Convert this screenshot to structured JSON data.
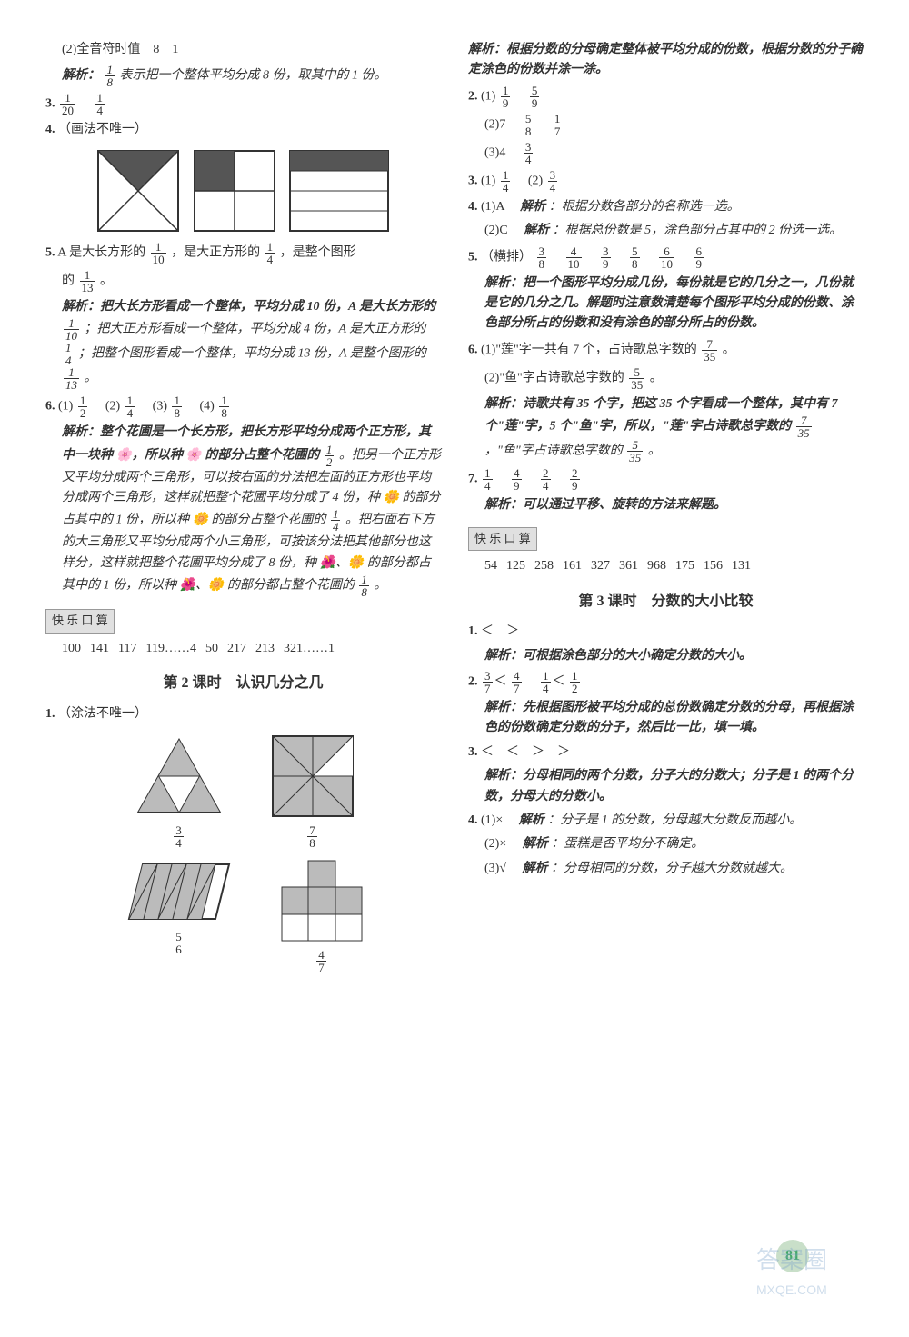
{
  "left": {
    "p1": {
      "text": "(2)全音符时值　8　1"
    },
    "p2a": "解析：",
    "p2b": "表示把一个整体平均分成 8 份，取其中的 1 份。",
    "p3_num": "3.",
    "p4_num": "4.",
    "p4_text": "（画法不唯一）",
    "q4_shapes": {
      "stroke": "#333",
      "fill": "#666",
      "size": 90
    },
    "p5_num": "5.",
    "p5_a": "A 是大长方形的",
    "p5_b": "，是大正方形的",
    "p5_c": "，是整个图形",
    "p5_d": "的",
    "p5_e": "。",
    "p5_ex_a": "解析：把大长方形看成一个整体，平均分成 10 份，A 是大长方形的",
    "p5_ex_b": "；把大正方形看成一个整体，平均分成 4 份，A 是大正方形的",
    "p5_ex_c": "；把整个图形看成一个整体，平均分成 13 份，A 是整个图形的",
    "p5_ex_d": "。",
    "p6_num": "6.",
    "p6_a": "(1)",
    "p6_b": "(2)",
    "p6_c": "(3)",
    "p6_d": "(4)",
    "p6_ex1a": "解析：整个花圃是一个长方形，把长方形平均分成两个正方形，其中一块种 🌸，所以种 🌸 的部分占整个花圃的",
    "p6_ex1b": "。把另一个正方形又平均分成两个三角形，可以按右面的分法把左面的正方形也平均分成两个三角形，这样就把整个花圃平均分成了 4 份，种 🌼 的部分占其中的 1 份，所以种 🌼 的部分占整个花圃的",
    "p6_ex1c": "。把右面右下方的大三角形又平均分成两个小三角形，可按该分法把其他部分也这样分，这样就把整个花圃平均分成了 8 份，种 🌺、🌼 的部分都占其中的 1 份，所以种 🌺、🌼 的部分都占整个花圃的",
    "p6_ex1d": "。",
    "klks_label": "快 乐 口 算",
    "klks_items": [
      "100",
      "141",
      "117",
      "119……4",
      "50",
      "217",
      "213",
      "321……1"
    ],
    "lesson2_title": "第 2 课时　认识几分之几",
    "l2_p1_num": "1.",
    "l2_p1_text": "（涂法不唯一）",
    "l2_labels": {
      "a": "3/4 → display",
      "b": "7/8",
      "c": "5/6",
      "d": "4/7"
    },
    "colors": {
      "shape_stroke": "#333",
      "shape_fill_dark": "#555",
      "shape_fill_light": "#ccc"
    }
  },
  "right": {
    "p1_a": "解析：根据分数的分母确定整体被平均分成的份数，根据分数的分子确定涂色的份数并涂一涂。",
    "p2_num": "2.",
    "p2_1": "(1)",
    "p2_2": "(2)7",
    "p2_3": "(3)4",
    "p3_num": "3.",
    "p3_1": "(1)",
    "p3_2": "(2)",
    "p4_num": "4.",
    "p4_1a": "(1)A　",
    "p4_1b": "解析",
    "p4_1c": "：根据分数各部分的名称选一选。",
    "p4_2a": "(2)C　",
    "p4_2b": "解析",
    "p4_2c": "：根据总份数是 5，涂色部分占其中的 2 份选一选。",
    "p5_num": "5.",
    "p5_lead": "（横排）",
    "p5_ex": "解析：把一个图形平均分成几份，每份就是它的几分之一，几份就是它的几分之几。解题时注意数清楚每个图形平均分成的份数、涂色部分所占的份数和没有涂色的部分所占的份数。",
    "p6_num": "6.",
    "p6_1a": "(1)\"莲\"字一共有 7 个，占诗歌总字数的",
    "p6_1b": "。",
    "p6_2a": "(2)\"鱼\"字占诗歌总字数的",
    "p6_2b": "。",
    "p6_ex_a": "解析：诗歌共有 35 个字，把这 35 个字看成一个整体，其中有 7 个\"莲\"字，5 个\"鱼\"字，所以，\"莲\"字占诗歌总字数的",
    "p6_ex_b": "，\"鱼\"字占诗歌总字数的",
    "p6_ex_c": "。",
    "p7_num": "7.",
    "p7_ex": "解析：可以通过平移、旋转的方法来解题。",
    "klks_label": "快 乐 口 算",
    "klks_items": [
      "54",
      "125",
      "258",
      "161",
      "327",
      "361",
      "968",
      "175",
      "156",
      "131"
    ],
    "lesson3_title": "第 3 课时　分数的大小比较",
    "l3_p1_num": "1.",
    "l3_p1_text": "＜　＞",
    "l3_p1_ex": "解析：可根据涂色部分的大小确定分数的大小。",
    "l3_p2_num": "2.",
    "l3_p2_ex": "解析：先根据图形被平均分成的总份数确定分数的分母，再根据涂色的份数确定分数的分子，然后比一比，填一填。",
    "l3_p3_num": "3.",
    "l3_p3_text": "＜　＜　＞　＞",
    "l3_p3_ex": "解析：分母相同的两个分数，分子大的分数大；分子是 1 的两个分数，分母大的分数小。",
    "l3_p4_num": "4.",
    "l3_p4_1a": "(1)×　",
    "l3_p4_1b": "解析",
    "l3_p4_1c": "：分子是 1 的分数，分母越大分数反而越小。",
    "l3_p4_2a": "(2)×　",
    "l3_p4_2b": "解析",
    "l3_p4_2c": "：蛋糕是否平均分不确定。",
    "l3_p4_3a": "(3)√　",
    "l3_p4_3b": "解析",
    "l3_p4_3c": "：分母相同的分数，分子越大分数就越大。"
  },
  "fracs": {
    "f1_8": {
      "t": "1",
      "b": "8"
    },
    "f1_20": {
      "t": "1",
      "b": "20"
    },
    "f1_4": {
      "t": "1",
      "b": "4"
    },
    "f1_10": {
      "t": "1",
      "b": "10"
    },
    "f1_13": {
      "t": "1",
      "b": "13"
    },
    "f1_2": {
      "t": "1",
      "b": "2"
    },
    "f3_4": {
      "t": "3",
      "b": "4"
    },
    "f7_8": {
      "t": "7",
      "b": "8"
    },
    "f5_6": {
      "t": "5",
      "b": "6"
    },
    "f4_7": {
      "t": "4",
      "b": "7"
    },
    "f1_9": {
      "t": "1",
      "b": "9"
    },
    "f5_9": {
      "t": "5",
      "b": "9"
    },
    "f5_8": {
      "t": "5",
      "b": "8"
    },
    "f1_7": {
      "t": "1",
      "b": "7"
    },
    "f3_8": {
      "t": "3",
      "b": "8"
    },
    "f4_10": {
      "t": "4",
      "b": "10"
    },
    "f3_9": {
      "t": "3",
      "b": "9"
    },
    "f6_10": {
      "t": "6",
      "b": "10"
    },
    "f6_9": {
      "t": "6",
      "b": "9"
    },
    "f7_35": {
      "t": "7",
      "b": "35"
    },
    "f5_35": {
      "t": "5",
      "b": "35"
    },
    "f4_9": {
      "t": "4",
      "b": "9"
    },
    "f2_4": {
      "t": "2",
      "b": "4"
    },
    "f2_9": {
      "t": "2",
      "b": "9"
    },
    "f3_7": {
      "t": "3",
      "b": "7"
    },
    "f4_7b": {
      "t": "4",
      "b": "7"
    }
  },
  "page_number": "81",
  "watermark_main": "答案圈",
  "watermark_sub": "MXQE.COM"
}
